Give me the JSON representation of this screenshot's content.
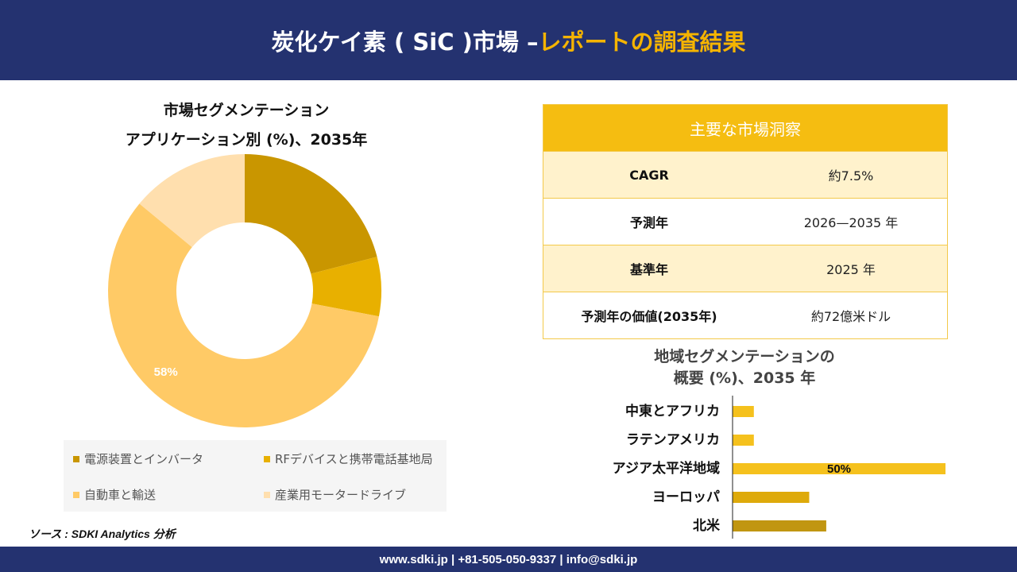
{
  "header": {
    "title_main": "炭化ケイ素 ( SiC )市場 –",
    "title_accent": "レポートの調査結果"
  },
  "donut": {
    "title_line1": "市場セグメンテーション",
    "title_line2": "アプリケーション別 (%)、2035年"
  },
  "kpi": {
    "heading": "主要な市場洞察",
    "rows": [
      {
        "label": "CAGR",
        "value": "約7.5%"
      },
      {
        "label": "予測年",
        "value": "2026—2035 年"
      },
      {
        "label": "基準年",
        "value": "2025 年"
      },
      {
        "label": "予測年の価値(2035年)",
        "value": "約72億米ドル"
      }
    ]
  },
  "bars": {
    "title_line1": "地域セグメンテーションの",
    "title_line2": "概要 (%)、2035 年"
  },
  "source": "ソース : SDKI Analytics 分析",
  "footer": "www.sdki.jp | +81-505-050-9337 | info@sdki.jp",
  "colors": {
    "navy": "#243270",
    "accent": "#f5b400"
  },
  "chart_data": [
    {
      "type": "pie",
      "donut": true,
      "categories": [
        "電源装置とインバータ",
        "RFデバイスと携帯電話基地局",
        "自動車と輸送",
        "産業用モータードライブ"
      ],
      "values": [
        21,
        7,
        58,
        14
      ],
      "data_labels": [
        "",
        "",
        "58%",
        ""
      ],
      "colors": [
        "#c99600",
        "#e8b000",
        "#ffca66",
        "#ffdfae"
      ],
      "legend_position": "bottom"
    },
    {
      "type": "bar",
      "orientation": "horizontal",
      "categories": [
        "中東とアフリカ",
        "ラテンアメリカ",
        "アジア太平洋地域",
        "ヨーロッパ",
        "北米"
      ],
      "values": [
        5,
        5,
        50,
        18,
        22
      ],
      "data_labels": [
        "",
        "",
        "50%",
        "",
        ""
      ],
      "colors": [
        "#f5c11d",
        "#f5c11d",
        "#f5c11d",
        "#deaa0b",
        "#c19611"
      ],
      "xlim": [
        0,
        50
      ]
    }
  ]
}
